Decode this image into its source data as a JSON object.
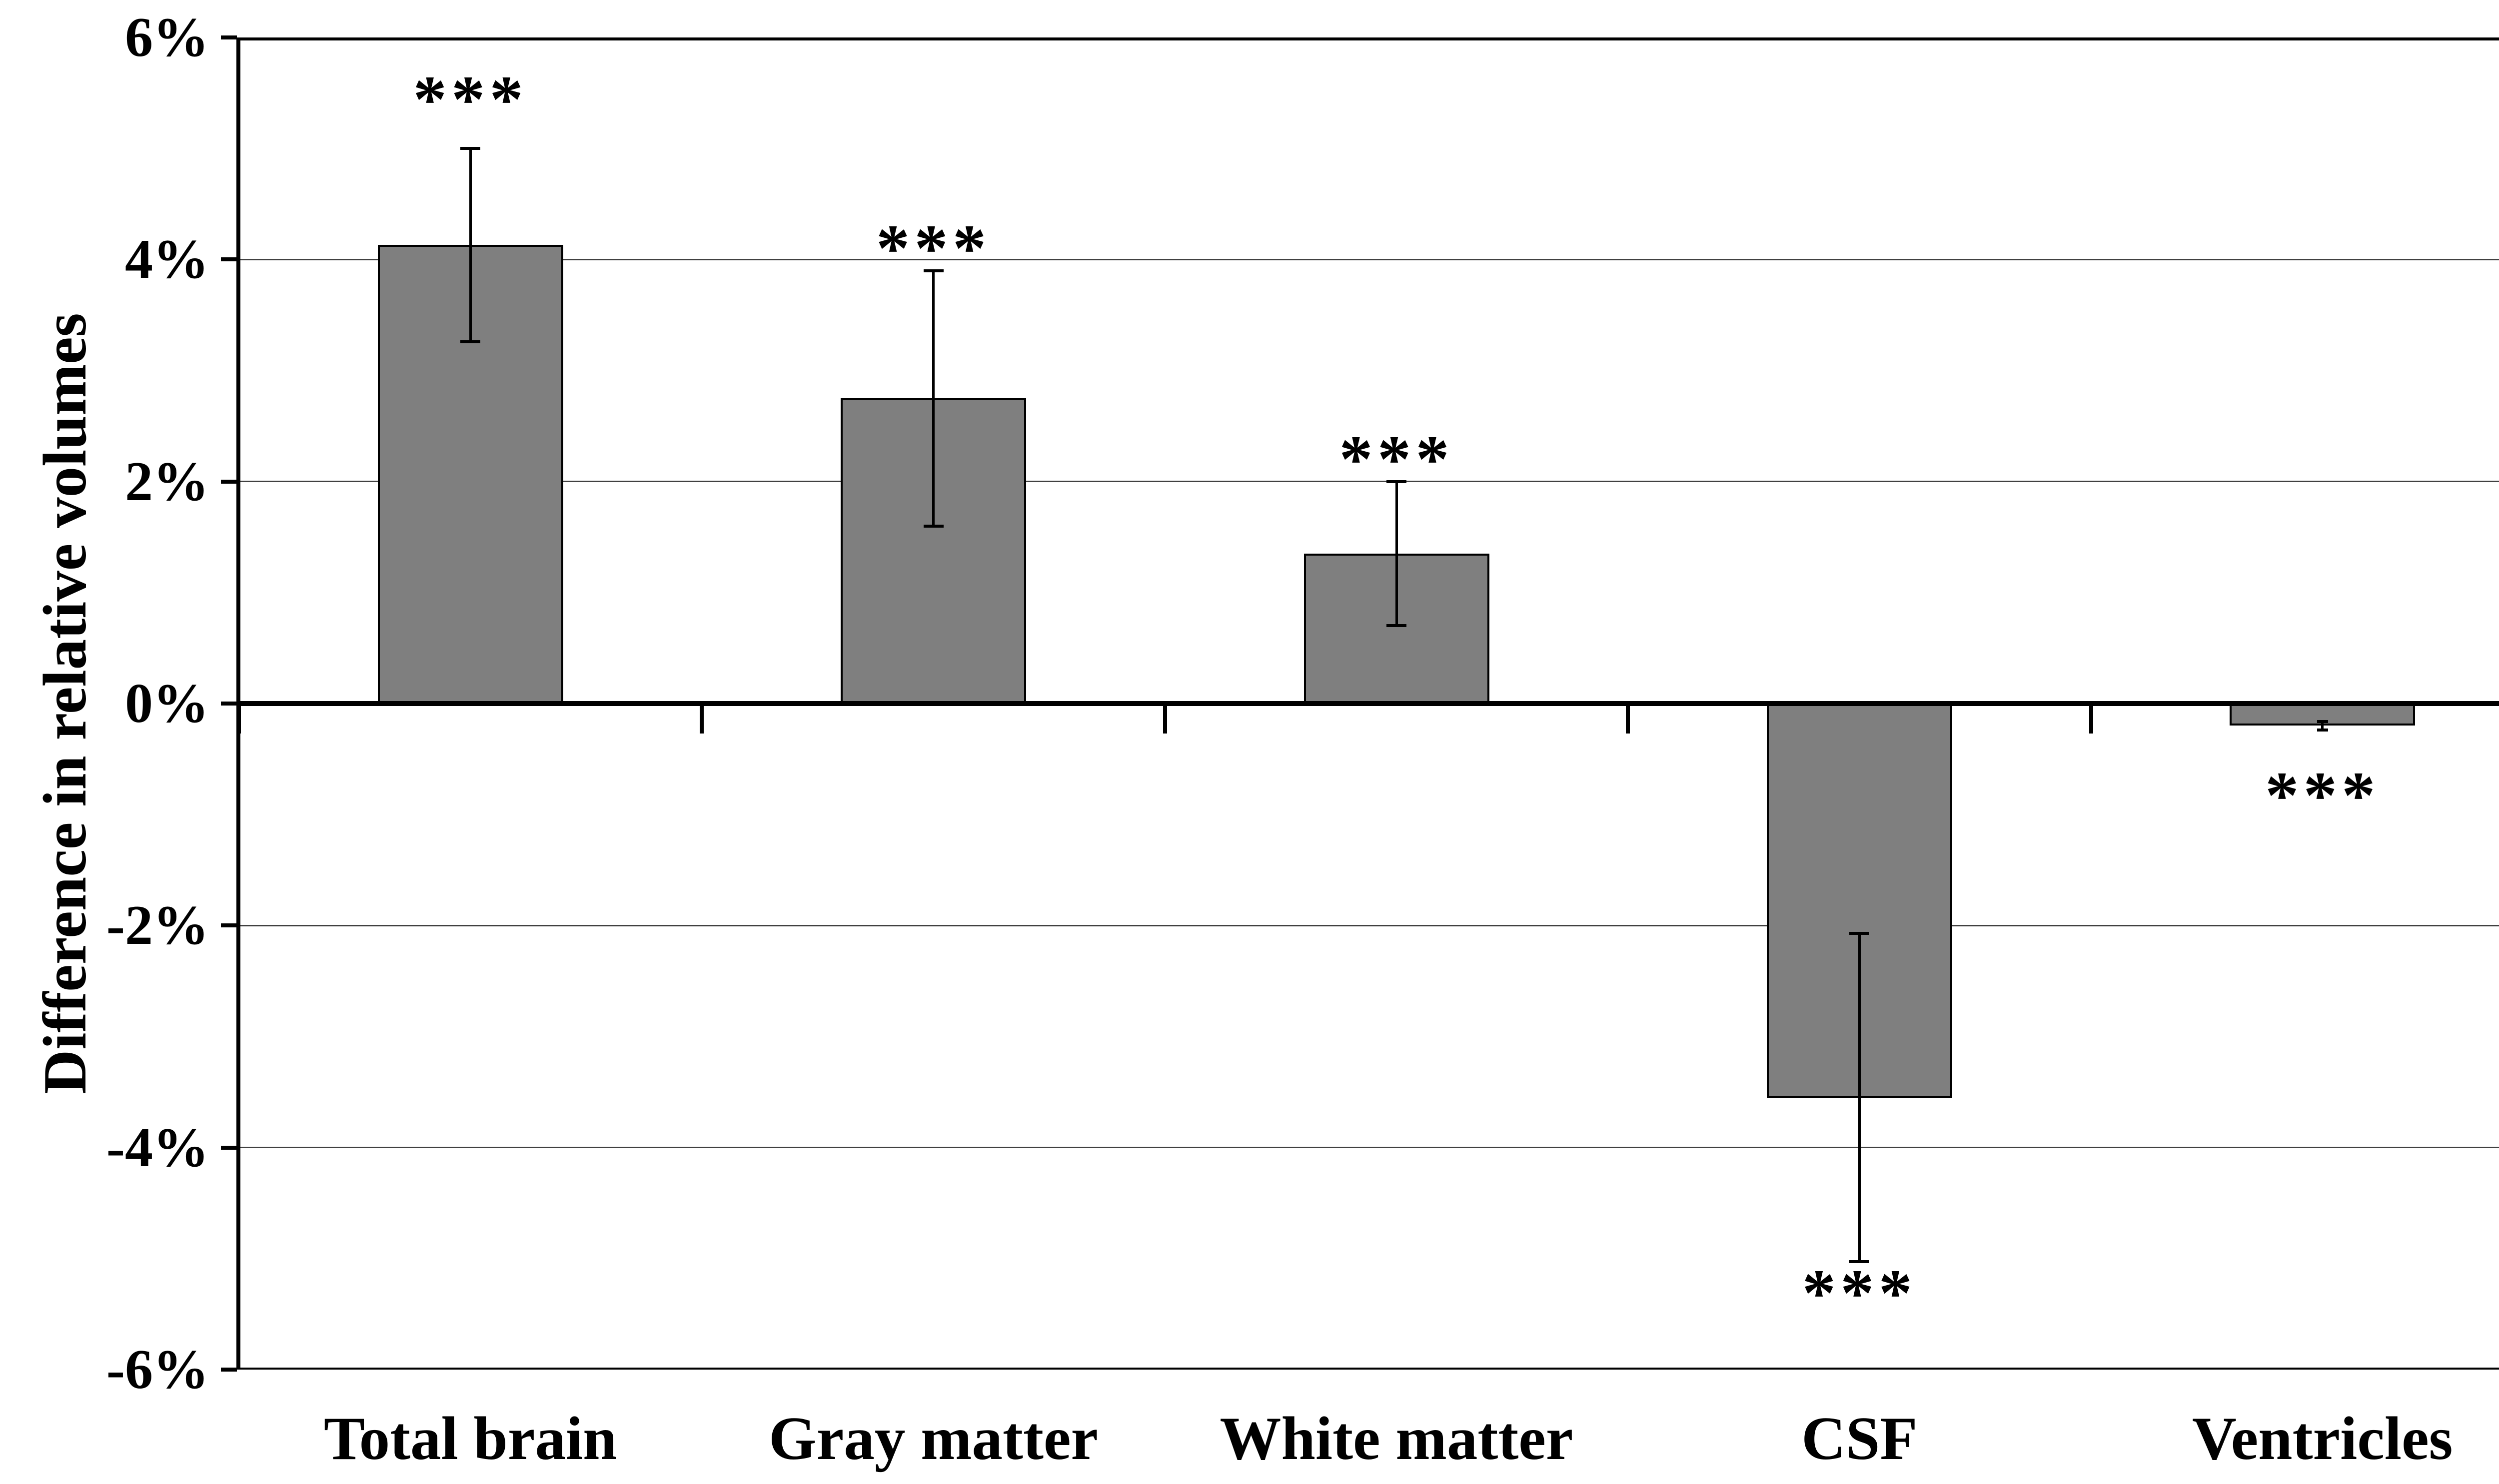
{
  "chart_data": {
    "type": "bar",
    "title": "",
    "xlabel": "",
    "ylabel": "Difference in relative volumes",
    "ylim": [
      -6,
      6
    ],
    "ytick_step": 2,
    "grid": "horizontal",
    "legend": "none",
    "yticks": [
      {
        "value": 6,
        "label": "6%"
      },
      {
        "value": 4,
        "label": "4%"
      },
      {
        "value": 2,
        "label": "2%"
      },
      {
        "value": 0,
        "label": "0%"
      },
      {
        "value": -2,
        "label": "-2%"
      },
      {
        "value": -4,
        "label": "-4%"
      },
      {
        "value": -6,
        "label": "-6%"
      }
    ],
    "categories": [
      "Total brain",
      "Gray matter",
      "White matter",
      "CSF",
      "Ventricles"
    ],
    "values": [
      4.13,
      2.75,
      1.35,
      -3.55,
      -0.2
    ],
    "error_low": [
      3.26,
      1.6,
      0.7,
      -5.03,
      -0.24
    ],
    "error_high": [
      5.0,
      3.9,
      2.0,
      -2.07,
      -0.16
    ],
    "significance": [
      {
        "label": "***",
        "y": 5.49
      },
      {
        "label": "***",
        "y": 4.15
      },
      {
        "label": "***",
        "y": 2.25
      },
      {
        "label": "***",
        "y": -5.26
      },
      {
        "label": "***",
        "y": -0.78
      }
    ],
    "colors": {
      "bar_fill": "#7F7F7F",
      "bar_border": "#000000",
      "axis": "#000000",
      "gridline": "#404040",
      "background": "#FFFFFF",
      "text": "#000000"
    }
  }
}
